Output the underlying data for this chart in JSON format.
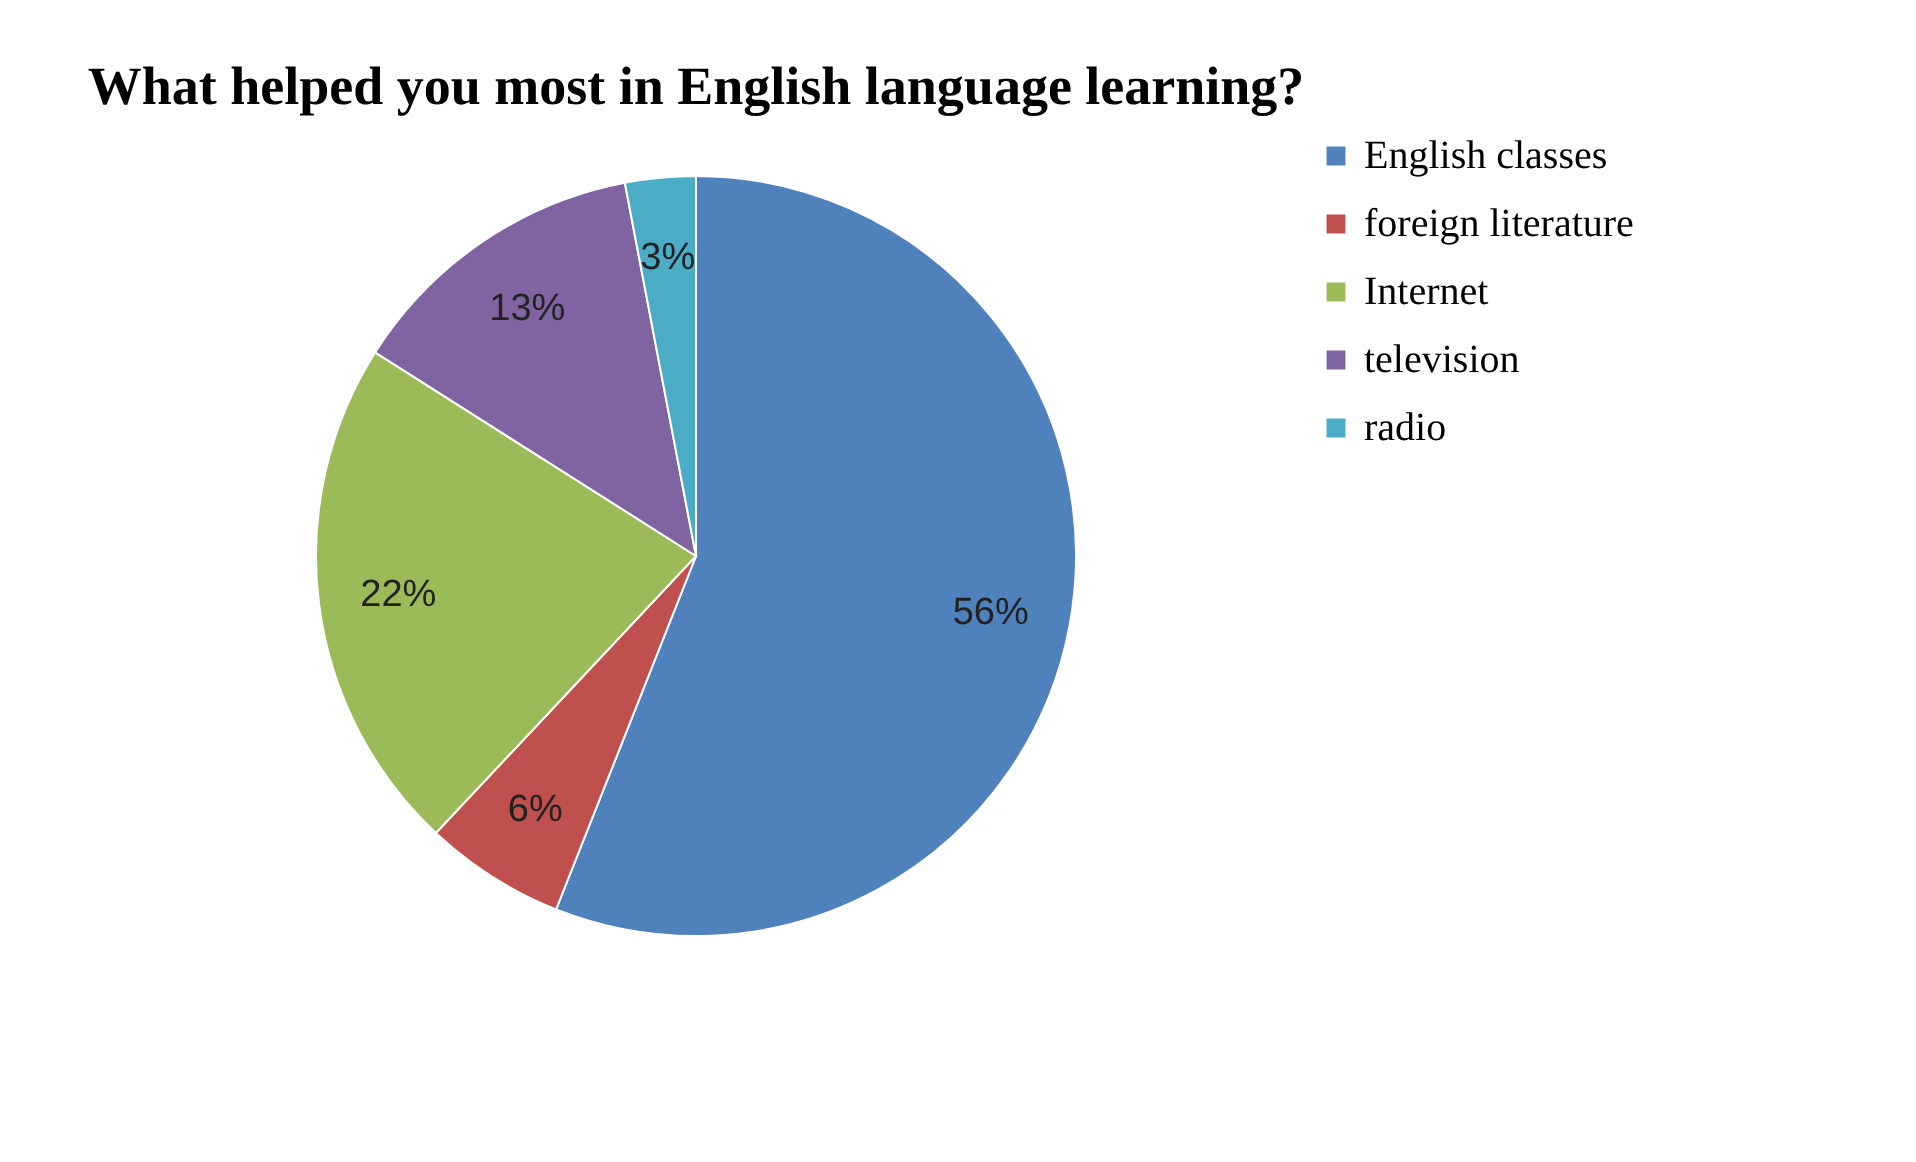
{
  "chart_data": {
    "type": "pie",
    "title": "What  helped you most in English language learning?",
    "categories": [
      "English classes",
      "foreign literature",
      "Internet",
      "television",
      "radio"
    ],
    "values": [
      56,
      6,
      22,
      13,
      3
    ],
    "colors": [
      "#4f81bd",
      "#c0504d",
      "#9bbb59",
      "#8064a2",
      "#4bacc6"
    ],
    "value_labels": [
      "56%",
      "6%",
      "22%",
      "13%",
      "3%"
    ],
    "legend": "right"
  }
}
